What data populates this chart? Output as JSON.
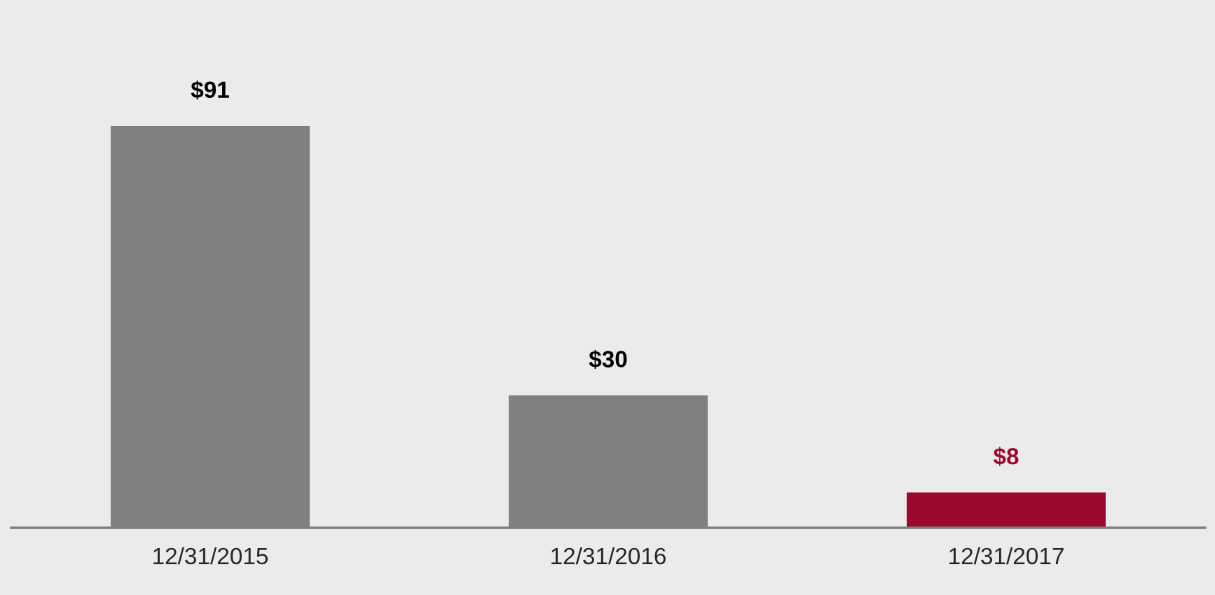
{
  "chart_data": {
    "type": "bar",
    "categories": [
      "12/31/2015",
      "12/31/2016",
      "12/31/2017"
    ],
    "values": [
      91,
      30,
      8
    ],
    "colors": [
      "#808080",
      "#808080",
      "#9b0a2e"
    ],
    "value_labels": [
      "$91",
      "$30",
      "$8"
    ],
    "grid": false,
    "legend": false
  }
}
